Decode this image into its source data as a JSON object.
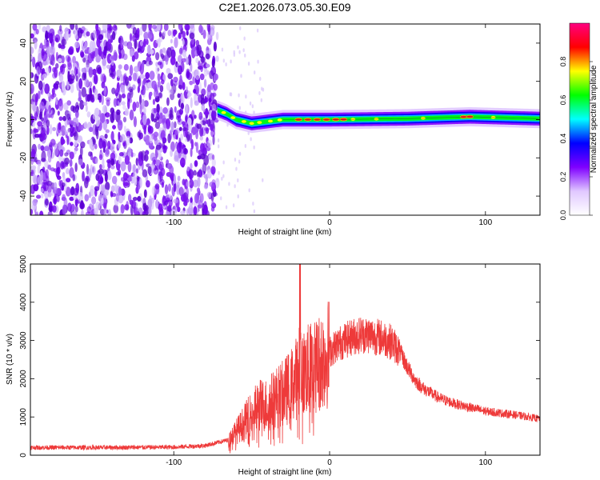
{
  "title": "C2E1.2026.073.05.30.E09",
  "chart_data": [
    {
      "type": "heatmap",
      "xlabel": "Height of straight line (km)",
      "ylabel": "Frequency (Hz)",
      "xlim": [
        -192,
        135
      ],
      "ylim": [
        -50,
        50
      ],
      "xticks": [
        -100,
        0,
        100
      ],
      "yticks": [
        -40,
        -20,
        0,
        20,
        40
      ],
      "noise_region_x": [
        -192,
        -72
      ],
      "signal_track": [
        {
          "x": -72,
          "y": 5
        },
        {
          "x": -66,
          "y": 3
        },
        {
          "x": -60,
          "y": 0
        },
        {
          "x": -50,
          "y": -2
        },
        {
          "x": -40,
          "y": -1
        },
        {
          "x": -30,
          "y": 0
        },
        {
          "x": 0,
          "y": 0
        },
        {
          "x": 50,
          "y": 0.5
        },
        {
          "x": 90,
          "y": 1.5
        },
        {
          "x": 135,
          "y": 0.5
        }
      ],
      "colorbar": {
        "label": "Normalized spectral amplitude",
        "range": [
          0,
          1
        ],
        "ticks": [
          "0.0",
          "0.2",
          "0.4",
          "0.6",
          "0.8"
        ],
        "colors": [
          "#ffffff",
          "#e0c8ff",
          "#7f00ff",
          "#0000ff",
          "#00ffff",
          "#00ff00",
          "#ffff00",
          "#ff0000",
          "#ff0080"
        ]
      }
    },
    {
      "type": "line",
      "xlabel": "Height of straight line (km)",
      "ylabel": "SNR (10 * v/v)",
      "xlim": [
        -192,
        135
      ],
      "ylim": [
        0,
        5000
      ],
      "xticks": [
        -100,
        0,
        100
      ],
      "yticks": [
        0,
        1000,
        2000,
        3000,
        4000,
        5000
      ],
      "line_color": "#ee3a3a",
      "series": [
        {
          "x": [
            -192,
            -150,
            -100,
            -80,
            -65,
            -58,
            -50,
            -45,
            -40,
            -35,
            -30,
            -25,
            -20,
            -19,
            -18,
            -15,
            -10,
            -5,
            0,
            5,
            10,
            15,
            20,
            25,
            30,
            35,
            40,
            45,
            50,
            55,
            60,
            70,
            80,
            90,
            100,
            110,
            120,
            135
          ],
          "y": [
            200,
            200,
            210,
            250,
            400,
            700,
            1100,
            1300,
            1300,
            1500,
            1600,
            1800,
            2100,
            5000,
            2100,
            2200,
            2300,
            2500,
            2700,
            2900,
            3000,
            3100,
            3150,
            3150,
            3100,
            3050,
            2950,
            2700,
            2300,
            1950,
            1750,
            1500,
            1350,
            1250,
            1150,
            1100,
            1050,
            950
          ]
        }
      ]
    }
  ]
}
